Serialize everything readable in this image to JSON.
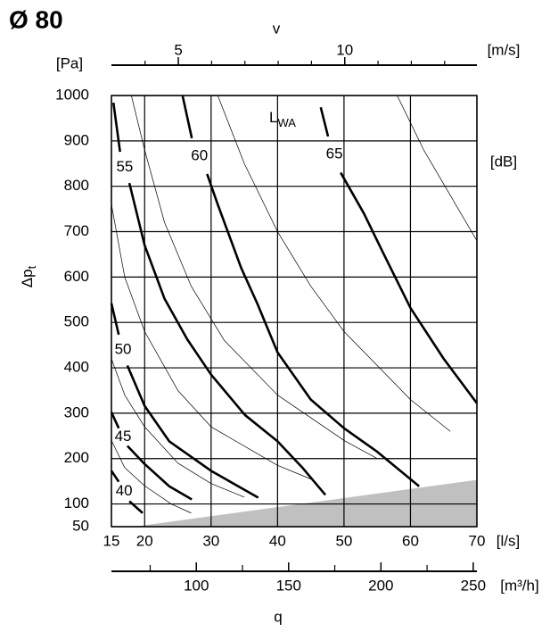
{
  "chart_data": {
    "type": "line",
    "title": "Ø 80",
    "xlabel": "q",
    "x_unit": "[l/s]",
    "ylabel": "Δp",
    "ylabel_sub": "t",
    "y_unit": "[Pa]",
    "xlim": [
      15,
      70
    ],
    "ylim": [
      50,
      1000
    ],
    "xticks": [
      15,
      20,
      30,
      40,
      50,
      60,
      70
    ],
    "yticks": [
      50,
      100,
      200,
      300,
      400,
      500,
      600,
      700,
      800,
      900,
      1000
    ],
    "grid": true,
    "top_axis": {
      "label": "v",
      "unit": "[m/s]",
      "lim": [
        2.99,
        13.97
      ],
      "ticks": [
        5,
        10
      ],
      "minor_ticks": [
        4,
        6,
        7,
        8,
        9,
        11,
        12,
        13
      ]
    },
    "x2_axis": {
      "unit": "[m³/h]",
      "lim": [
        54,
        252
      ],
      "ticks": [
        100,
        150,
        200,
        250
      ],
      "minor_ticks": [
        75,
        125,
        175,
        225
      ]
    },
    "series_label": "L",
    "series_label_sub": "WA",
    "series_unit": "[dB]",
    "series": [
      {
        "name": "40",
        "color": "#000000",
        "x": [
          15,
          16.1,
          null,
          17.7,
          19.7
        ],
        "values": [
          173,
          149,
          null,
          106,
          80
        ]
      },
      {
        "name": "45",
        "color": "#000000",
        "x": [
          15,
          16.1,
          null,
          17.4,
          20,
          23.7,
          27.1
        ],
        "values": [
          302,
          267,
          null,
          228,
          188,
          139,
          110
        ]
      },
      {
        "name": "50",
        "color": "#000000",
        "x": [
          15,
          16.1,
          null,
          17.4,
          20,
          23.7,
          30,
          37.1
        ],
        "values": [
          542,
          473,
          null,
          405,
          316,
          238,
          173,
          114
        ]
      },
      {
        "name": "55",
        "color": "#000000",
        "x": [
          15.3,
          16.3,
          null,
          17.7,
          20,
          23,
          26.4,
          30,
          35.1,
          40,
          43.8,
          47.2
        ],
        "values": [
          984,
          876,
          null,
          807,
          670,
          552,
          463,
          385,
          296,
          238,
          179,
          120
        ]
      },
      {
        "name": "60",
        "color": "#000000",
        "x": [
          25.7,
          27.1,
          null,
          29.4,
          31,
          34.5,
          37,
          40,
          45,
          50,
          55,
          61.3
        ],
        "values": [
          1000,
          906,
          null,
          827,
          760,
          621,
          540,
          434,
          330,
          267,
          215,
          139
        ]
      },
      {
        "name": "65",
        "color": "#000000",
        "x": [
          46.5,
          47.6,
          null,
          49.5,
          53,
          56,
          60,
          65,
          70
        ],
        "values": [
          974,
          910,
          null,
          830,
          740,
          650,
          532,
          420,
          322
        ]
      }
    ],
    "guide_curves": [
      {
        "x": [
          15,
          17,
          20,
          24,
          27
        ],
        "values": [
          240,
          180,
          140,
          100,
          80
        ]
      },
      {
        "x": [
          15,
          17,
          20,
          25,
          30,
          35
        ],
        "values": [
          420,
          340,
          270,
          190,
          145,
          115
        ]
      },
      {
        "x": [
          15,
          17,
          20,
          25,
          30,
          40,
          45
        ],
        "values": [
          760,
          600,
          480,
          350,
          270,
          185,
          155
        ]
      },
      {
        "x": [
          18,
          20,
          23,
          27,
          32,
          40,
          50,
          55
        ],
        "values": [
          1000,
          880,
          720,
          580,
          460,
          340,
          240,
          200
        ]
      },
      {
        "x": [
          31,
          35,
          40,
          45,
          50,
          60,
          66
        ],
        "values": [
          1000,
          850,
          700,
          580,
          480,
          330,
          260
        ]
      },
      {
        "x": [
          58,
          62,
          66,
          70
        ],
        "values": [
          1000,
          880,
          780,
          680
        ]
      }
    ],
    "shaded_region": {
      "color": "#c0c0c0",
      "x": [
        18.4,
        70
      ],
      "values": [
        50,
        153
      ]
    }
  }
}
